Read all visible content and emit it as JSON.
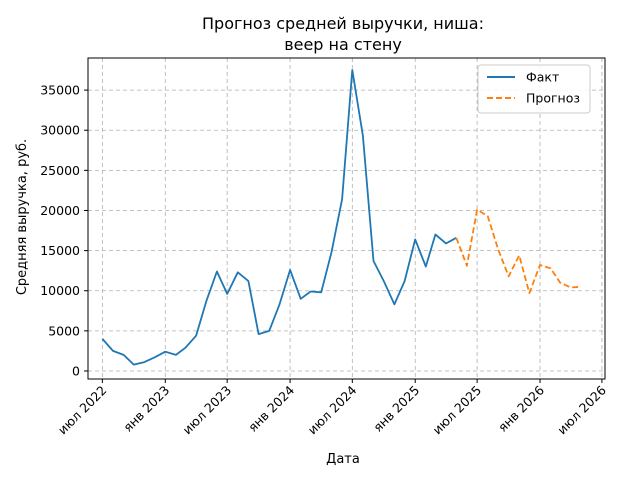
{
  "chart_data": {
    "type": "line",
    "title_line1": "Прогноз средней выручки, ниша:",
    "title_line2": "веер на стену",
    "xlabel": "Дата",
    "ylabel": "Средняя выручка, руб.",
    "grid": true,
    "legend_placement": "top-right",
    "colors": {
      "fact": "#1f77b4",
      "forecast": "#ff7f0e"
    },
    "xlim": [
      "2022-05-20",
      "2026-07-10"
    ],
    "ylim": [
      -1000,
      39000
    ],
    "x_ticks": [
      {
        "date": "2022-07-01",
        "label": "июл 2022"
      },
      {
        "date": "2023-01-01",
        "label": "янв 2023"
      },
      {
        "date": "2023-07-01",
        "label": "июл 2023"
      },
      {
        "date": "2024-01-01",
        "label": "янв 2024"
      },
      {
        "date": "2024-07-01",
        "label": "июл 2024"
      },
      {
        "date": "2025-01-01",
        "label": "янв 2025"
      },
      {
        "date": "2025-07-01",
        "label": "июл 2025"
      },
      {
        "date": "2026-01-01",
        "label": "янв 2026"
      },
      {
        "date": "2026-07-01",
        "label": "июл 2026"
      }
    ],
    "y_ticks": [
      0,
      5000,
      10000,
      15000,
      20000,
      25000,
      30000,
      35000
    ],
    "series": [
      {
        "name": "Факт",
        "style": "solid",
        "x": [
          "2022-07-01",
          "2022-08-01",
          "2022-09-01",
          "2022-10-01",
          "2022-11-01",
          "2022-12-01",
          "2023-01-01",
          "2023-02-01",
          "2023-03-01",
          "2023-04-01",
          "2023-05-01",
          "2023-06-01",
          "2023-07-01",
          "2023-08-01",
          "2023-09-01",
          "2023-10-01",
          "2023-11-01",
          "2023-12-01",
          "2024-01-01",
          "2024-02-01",
          "2024-03-01",
          "2024-04-01",
          "2024-05-01",
          "2024-06-01",
          "2024-07-01",
          "2024-08-01",
          "2024-09-01",
          "2024-10-01",
          "2024-11-01",
          "2024-12-01",
          "2025-01-01",
          "2025-02-01",
          "2025-03-01",
          "2025-04-01",
          "2025-05-01"
        ],
        "y": [
          4000,
          2500,
          2000,
          800,
          1100,
          1700,
          2400,
          2000,
          2900,
          4400,
          8700,
          12400,
          9600,
          12300,
          11200,
          4600,
          5000,
          8300,
          12600,
          9000,
          9900,
          9800,
          14800,
          21400,
          37500,
          29300,
          13700,
          11200,
          8300,
          11200,
          16400,
          13000,
          17000,
          15900,
          16600
        ]
      },
      {
        "name": "Прогноз",
        "style": "dashed",
        "x": [
          "2025-05-01",
          "2025-06-01",
          "2025-07-01",
          "2025-08-01",
          "2025-09-01",
          "2025-10-01",
          "2025-11-01",
          "2025-12-01",
          "2026-01-01",
          "2026-02-01",
          "2026-03-01",
          "2026-04-01",
          "2026-05-01"
        ],
        "y": [
          16600,
          13100,
          20100,
          19300,
          15100,
          11800,
          14400,
          9700,
          13200,
          12800,
          11000,
          10400,
          10500
        ]
      }
    ]
  }
}
